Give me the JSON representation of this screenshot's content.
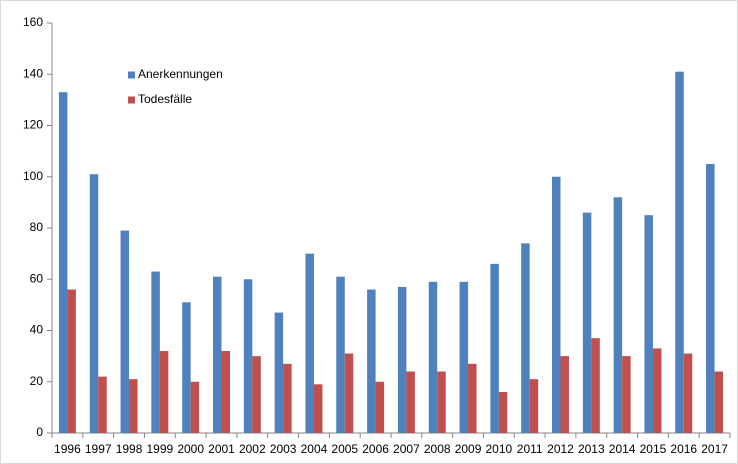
{
  "chart_data": {
    "type": "bar",
    "categories": [
      "1996",
      "1997",
      "1998",
      "1999",
      "2000",
      "2001",
      "2002",
      "2003",
      "2004",
      "2005",
      "2006",
      "2007",
      "2008",
      "2009",
      "2010",
      "2011",
      "2012",
      "2013",
      "2014",
      "2015",
      "2016",
      "2017"
    ],
    "series": [
      {
        "name": "Anerkennungen",
        "color": "#4f81bd",
        "values": [
          133,
          101,
          79,
          63,
          51,
          61,
          60,
          47,
          70,
          61,
          56,
          57,
          59,
          59,
          66,
          74,
          100,
          86,
          92,
          85,
          141,
          105
        ]
      },
      {
        "name": "Todesfälle",
        "color": "#c0504d",
        "values": [
          56,
          22,
          21,
          32,
          20,
          32,
          30,
          27,
          19,
          31,
          20,
          24,
          24,
          27,
          16,
          21,
          30,
          37,
          30,
          33,
          31,
          24
        ]
      }
    ],
    "ylim": [
      0,
      160
    ],
    "yticks": [
      0,
      20,
      40,
      60,
      80,
      100,
      120,
      140,
      160
    ],
    "grid": false,
    "legend": "upper left"
  }
}
